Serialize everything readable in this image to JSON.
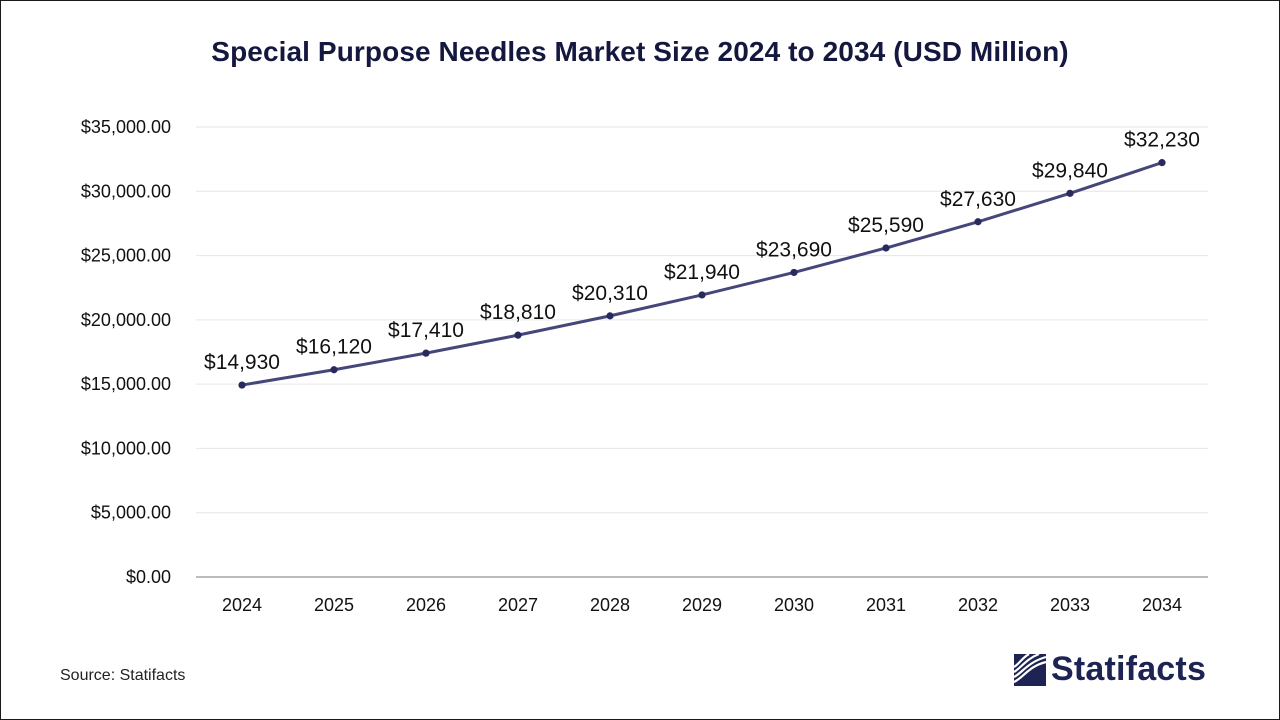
{
  "chart_data": {
    "type": "line",
    "title": "Special Purpose Needles Market Size 2024 to 2034 (USD Million)",
    "xlabel": "",
    "ylabel": "",
    "categories": [
      "2024",
      "2025",
      "2026",
      "2027",
      "2028",
      "2029",
      "2030",
      "2031",
      "2032",
      "2033",
      "2034"
    ],
    "series": [
      {
        "name": "Market Size (USD Million)",
        "values": [
          14930,
          16120,
          17410,
          18810,
          20310,
          21940,
          23690,
          25590,
          27630,
          29840,
          32230
        ],
        "labels": [
          "$14,930",
          "$16,120",
          "$17,410",
          "$18,810",
          "$20,310",
          "$21,940",
          "$23,690",
          "$25,590",
          "$27,630",
          "$29,840",
          "$32,230"
        ]
      }
    ],
    "ylim": [
      0,
      35000
    ],
    "yticks": [
      0,
      5000,
      10000,
      15000,
      20000,
      25000,
      30000,
      35000
    ],
    "ytick_labels": [
      "$0.00",
      "$5,000.00",
      "$10,000.00",
      "$15,000.00",
      "$20,000.00",
      "$25,000.00",
      "$30,000.00",
      "$35,000.00"
    ],
    "grid": true,
    "legend": "none"
  },
  "colors": {
    "line": "#45477a",
    "marker": "#262a5c",
    "title": "#14183e",
    "grid": "#e6e6e6",
    "axis": "#a6a6a6"
  },
  "footer": {
    "source": "Source: Statifacts",
    "brand": "Statifacts",
    "brand_icon": "statifacts-logo-icon"
  }
}
